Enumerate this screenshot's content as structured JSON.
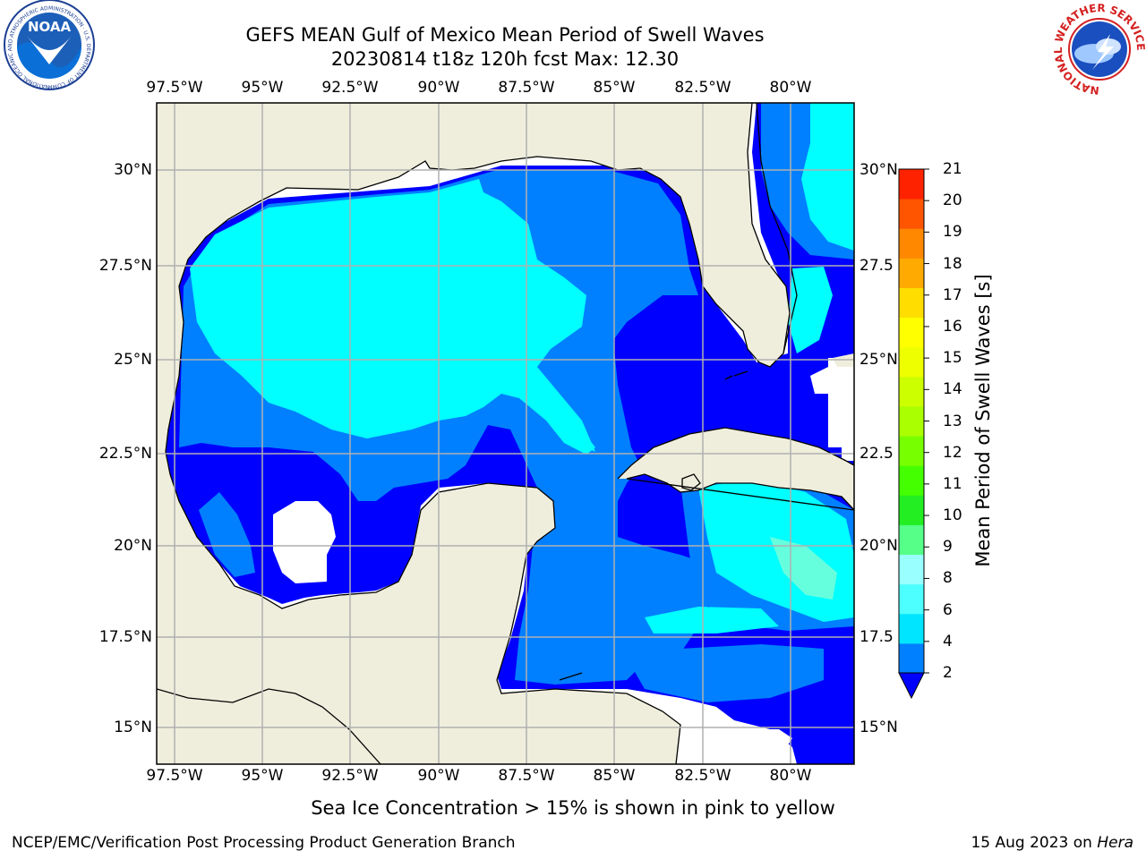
{
  "title": {
    "line1": "GEFS MEAN Gulf of Mexico Mean Period of Swell Waves",
    "line2": "20230814 t18z 120h fcst   Max: 12.30"
  },
  "map": {
    "lon_ticks": [
      "97.5°W",
      "95°W",
      "92.5°W",
      "90°W",
      "87.5°W",
      "85°W",
      "82.5°W",
      "80°W"
    ],
    "lat_ticks": [
      "30°N",
      "27.5°N",
      "25°N",
      "22.5°N",
      "20°N",
      "17.5°N",
      "15°N"
    ],
    "lat_ticks_right": [
      "30°N",
      "27.5",
      "25°N",
      "22.5",
      "20°N",
      "17.5",
      "15°N"
    ],
    "colors": {
      "land": "#efeedd",
      "grid": "#b0b0b0",
      "coast": "#000000",
      "period_2_4": "#0000ff",
      "period_4_6": "#0080ff",
      "period_6_8": "#00ffff",
      "period_8_10": "#44ff88",
      "period_10_12": "#66ff00",
      "period_12_14": "#aaff00"
    }
  },
  "colorbar": {
    "label": "Mean Period of Swell Waves [s]",
    "ticks": [
      "21",
      "20",
      "19",
      "18",
      "17",
      "16",
      "15",
      "14",
      "13",
      "12",
      "11",
      "10",
      "9",
      "8",
      "6",
      "4",
      "2"
    ],
    "colors": [
      "#0080ff",
      "#00e5ff",
      "#4dffff",
      "#99ffff",
      "#55ff88",
      "#22ee22",
      "#44ff00",
      "#77ff00",
      "#aaff00",
      "#ccff00",
      "#eeff00",
      "#ffff00",
      "#ffdd00",
      "#ffaa00",
      "#ff8800",
      "#ff5500",
      "#ff2200",
      "#ff0000"
    ]
  },
  "logos": {
    "noaa_text": "NOAA",
    "noaa_ring": "NATIONAL OCEANIC AND ATMOSPHERIC ADMINISTRATION · U.S. DEPARTMENT OF COMMERCE",
    "nws_ring": "NATIONAL WEATHER SERVICE"
  },
  "caption": "Sea Ice Concentration > 15% is shown in pink to yellow",
  "footer": {
    "left": "NCEP/EMC/Verification Post Processing Product Generation Branch",
    "date": "15 Aug 2023 on ",
    "machine": "Hera"
  }
}
